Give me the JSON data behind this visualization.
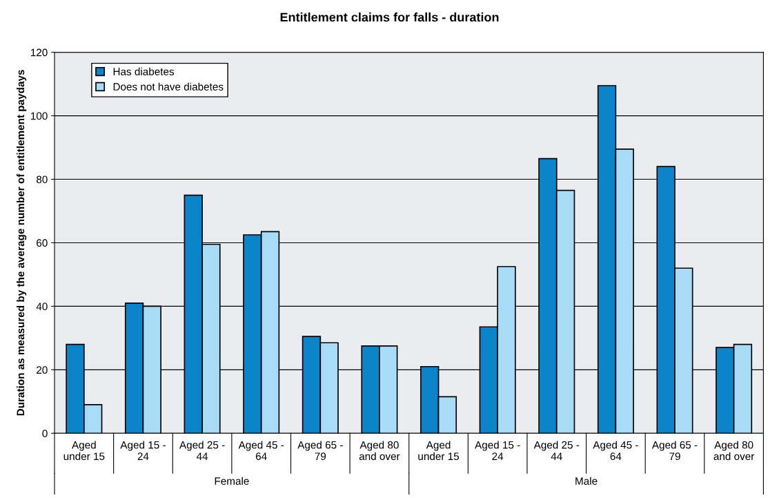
{
  "chart_data": {
    "type": "bar",
    "title": "Entitlement claims for falls - duration",
    "ylabel": "Duration as measured by the average number of entitlement paydays",
    "categories": [
      "Aged\nunder 15",
      "Aged 15 -\n24",
      "Aged 25 -\n44",
      "Aged 45 -\n64",
      "Aged 65 -\n79",
      "Aged 80\nand over",
      "Aged\nunder 15",
      "Aged 15 -\n24",
      "Aged 25 -\n44",
      "Aged 45 -\n64",
      "Aged 65 -\n79",
      "Aged 80\nand over"
    ],
    "series": [
      {
        "name": "Has diabetes",
        "color": "#0b84c9",
        "values": [
          28,
          41,
          75,
          62.5,
          30.5,
          27.5,
          21,
          33.5,
          86.5,
          109.5,
          84,
          27
        ]
      },
      {
        "name": "Does not have diabetes",
        "color": "#a8dcf6",
        "values": [
          9,
          40,
          59.5,
          63.5,
          28.5,
          27.5,
          11.5,
          52.5,
          76.5,
          89.5,
          52,
          28
        ]
      }
    ],
    "annotations": [
      "Female",
      "Male"
    ],
    "ylim": [
      0,
      120
    ],
    "yticks": [
      0,
      20,
      40,
      60,
      80,
      100,
      120
    ],
    "grid": "y",
    "legend": "top left"
  }
}
